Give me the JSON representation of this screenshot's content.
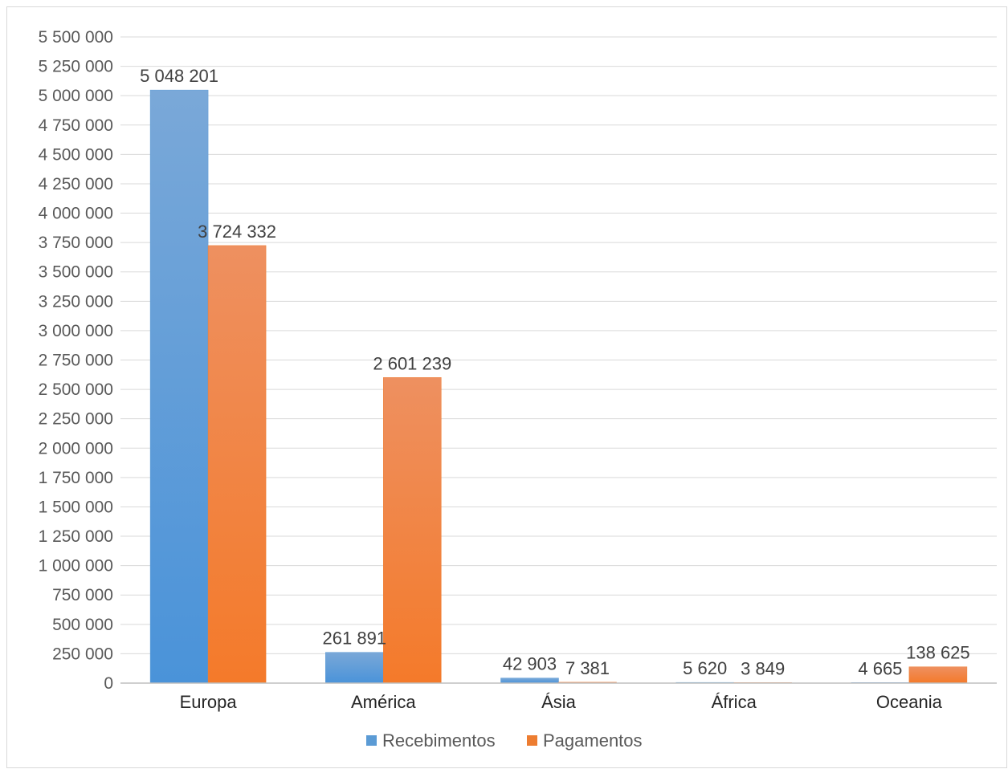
{
  "chart_data": {
    "type": "bar",
    "title": "",
    "xlabel": "",
    "ylabel": "",
    "categories": [
      "Europa",
      "América",
      "Ásia",
      "África",
      "Oceania"
    ],
    "series": [
      {
        "name": "Recebimentos",
        "color": "#5b9bd5",
        "values": [
          5048201,
          261891,
          42903,
          5620,
          4665
        ],
        "labels": [
          "5 048 201",
          "261 891",
          "42 903",
          "5 620",
          "4 665"
        ]
      },
      {
        "name": "Pagamentos",
        "color": "#ed7d31",
        "values": [
          3724332,
          2601239,
          7381,
          3849,
          138625
        ],
        "labels": [
          "3 724 332",
          "2 601 239",
          "7 381",
          "3 849",
          "138 625"
        ]
      }
    ],
    "ylim": [
      0,
      5500000
    ],
    "yticks": [
      0,
      250000,
      500000,
      750000,
      1000000,
      1250000,
      1500000,
      1750000,
      2000000,
      2250000,
      2500000,
      2750000,
      3000000,
      3250000,
      3500000,
      3750000,
      4000000,
      4250000,
      4500000,
      4750000,
      5000000,
      5250000,
      5500000
    ],
    "ytick_labels": [
      "0",
      "250 000",
      "500 000",
      "750 000",
      "1 000 000",
      "1 250 000",
      "1 500 000",
      "1 750 000",
      "2 000 000",
      "2 250 000",
      "2 500 000",
      "2 750 000",
      "3 000 000",
      "3 250 000",
      "3 500 000",
      "3 750 000",
      "4 000 000",
      "4 250 000",
      "4 500 000",
      "4 750 000",
      "5 000 000",
      "5 250 000",
      "5 500 000"
    ],
    "grid": true,
    "legend_position": "bottom"
  }
}
